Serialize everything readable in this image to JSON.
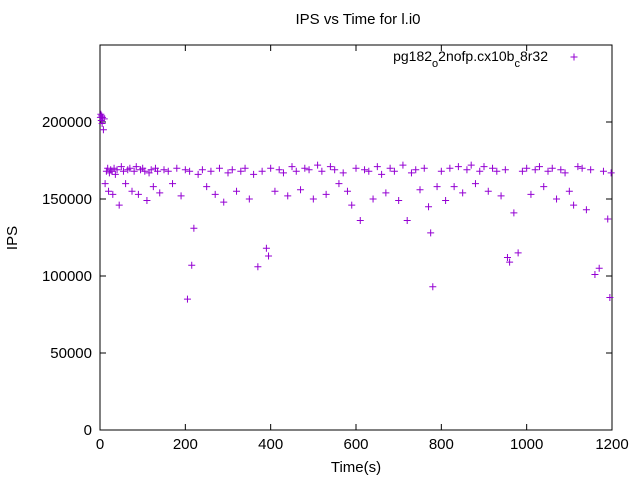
{
  "chart_data": {
    "type": "scatter",
    "title": "IPS vs Time for l.i0",
    "xlabel": "Time(s)",
    "ylabel": "IPS",
    "xlim": [
      0,
      1200
    ],
    "ylim": [
      0,
      250000
    ],
    "xticks": [
      0,
      200,
      400,
      600,
      800,
      1000,
      1200
    ],
    "yticks": [
      0,
      50000,
      100000,
      150000,
      200000
    ],
    "grid": false,
    "legend_position": "top-right",
    "series": [
      {
        "name": "pg182_o2nofp.cx10b_c8r32",
        "color": "#9400d3",
        "marker": "plus",
        "x": [
          1,
          2,
          3,
          4,
          5,
          6,
          8,
          10,
          12,
          15,
          18,
          20,
          22,
          25,
          28,
          30,
          33,
          36,
          40,
          45,
          50,
          55,
          60,
          65,
          70,
          75,
          80,
          85,
          90,
          95,
          100,
          105,
          110,
          115,
          120,
          125,
          130,
          135,
          140,
          150,
          160,
          170,
          180,
          190,
          200,
          205,
          210,
          215,
          220,
          230,
          240,
          250,
          260,
          270,
          280,
          290,
          300,
          310,
          320,
          330,
          340,
          350,
          360,
          370,
          380,
          390,
          395,
          400,
          410,
          420,
          430,
          440,
          450,
          460,
          470,
          480,
          490,
          500,
          510,
          520,
          530,
          540,
          550,
          560,
          570,
          580,
          590,
          600,
          610,
          620,
          630,
          640,
          650,
          660,
          670,
          680,
          690,
          700,
          710,
          720,
          730,
          740,
          750,
          760,
          770,
          775,
          780,
          790,
          800,
          810,
          820,
          830,
          840,
          850,
          860,
          870,
          880,
          890,
          900,
          910,
          920,
          930,
          940,
          950,
          955,
          960,
          970,
          980,
          990,
          1000,
          1010,
          1020,
          1030,
          1040,
          1050,
          1060,
          1070,
          1080,
          1090,
          1100,
          1110,
          1120,
          1130,
          1140,
          1150,
          1160,
          1170,
          1180,
          1190,
          1195,
          1198
        ],
        "y": [
          203000,
          205000,
          201000,
          204000,
          199000,
          203000,
          195000,
          202000,
          160000,
          168000,
          170000,
          155000,
          167000,
          169000,
          168000,
          153000,
          170000,
          166000,
          169000,
          146000,
          171000,
          168000,
          160000,
          169000,
          170000,
          155000,
          168000,
          171000,
          153000,
          169000,
          170000,
          168000,
          149000,
          167000,
          169000,
          158000,
          170000,
          168000,
          154000,
          169000,
          168000,
          160000,
          170000,
          152000,
          169000,
          85000,
          168000,
          107000,
          131000,
          166000,
          169000,
          158000,
          168000,
          153000,
          170000,
          148000,
          167000,
          169000,
          155000,
          168000,
          170000,
          150000,
          166000,
          106000,
          168000,
          118000,
          113000,
          170000,
          155000,
          169000,
          167000,
          152000,
          171000,
          168000,
          156000,
          170000,
          169000,
          150000,
          172000,
          168000,
          153000,
          171000,
          169000,
          160000,
          167000,
          155000,
          146000,
          170000,
          136000,
          169000,
          168000,
          150000,
          171000,
          166000,
          154000,
          170000,
          168000,
          149000,
          172000,
          136000,
          167000,
          169000,
          156000,
          170000,
          145000,
          128000,
          93000,
          158000,
          168000,
          149000,
          170000,
          158000,
          171000,
          154000,
          169000,
          172000,
          160000,
          168000,
          171000,
          155000,
          170000,
          168000,
          152000,
          169000,
          112000,
          109000,
          141000,
          115000,
          168000,
          170000,
          153000,
          169000,
          171000,
          158000,
          168000,
          170000,
          150000,
          169000,
          167000,
          155000,
          146000,
          171000,
          170000,
          143000,
          169000,
          101000,
          105000,
          168000,
          137000,
          86000,
          167000
        ]
      }
    ]
  }
}
